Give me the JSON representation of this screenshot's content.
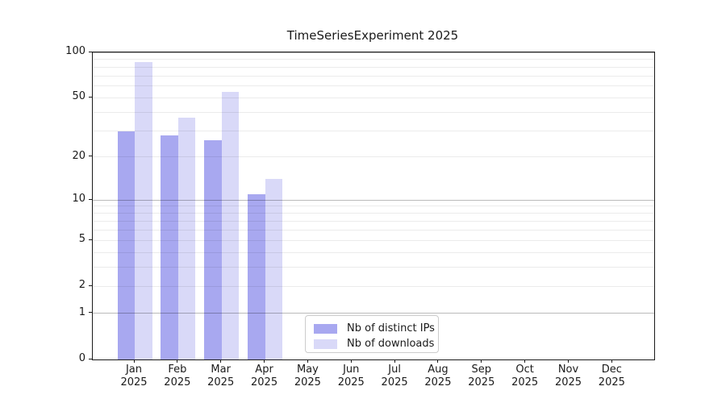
{
  "figure": {
    "background": "#ffffff"
  },
  "chart_data": {
    "type": "bar",
    "title": "TimeSeriesExperiment 2025",
    "categories": [
      "Jan",
      "Feb",
      "Mar",
      "Apr",
      "May",
      "Jun",
      "Jul",
      "Aug",
      "Sep",
      "Oct",
      "Nov",
      "Dec"
    ],
    "category_year": "2025",
    "series": [
      {
        "name": "Nb of distinct IPs",
        "color": "#a8a8f0",
        "values": [
          30,
          28,
          26,
          11,
          null,
          null,
          null,
          null,
          null,
          null,
          null,
          null
        ]
      },
      {
        "name": "Nb of downloads",
        "color": "#d9d9f8",
        "values": [
          86,
          37,
          55,
          14,
          null,
          null,
          null,
          null,
          null,
          null,
          null,
          null
        ]
      }
    ],
    "xlabel": "",
    "ylabel": "",
    "y_axis": {
      "scale": "log10(1+x)",
      "tick_values": [
        0,
        1,
        2,
        5,
        10,
        20,
        50,
        100
      ],
      "tick_labels": [
        "0",
        "1",
        "2",
        "5",
        "10",
        "20",
        "50",
        "100"
      ],
      "major_gridlines": [
        1,
        10,
        100
      ],
      "minor_gridlines": [
        2,
        3,
        4,
        5,
        6,
        7,
        8,
        9,
        20,
        30,
        40,
        50,
        60,
        70,
        80,
        90
      ],
      "range": [
        0,
        100
      ]
    },
    "grid": "horizontal, drawn over bars",
    "legend": {
      "position": "lower center-left inside plot",
      "entries": [
        "Nb of distinct IPs",
        "Nb of downloads"
      ]
    }
  }
}
